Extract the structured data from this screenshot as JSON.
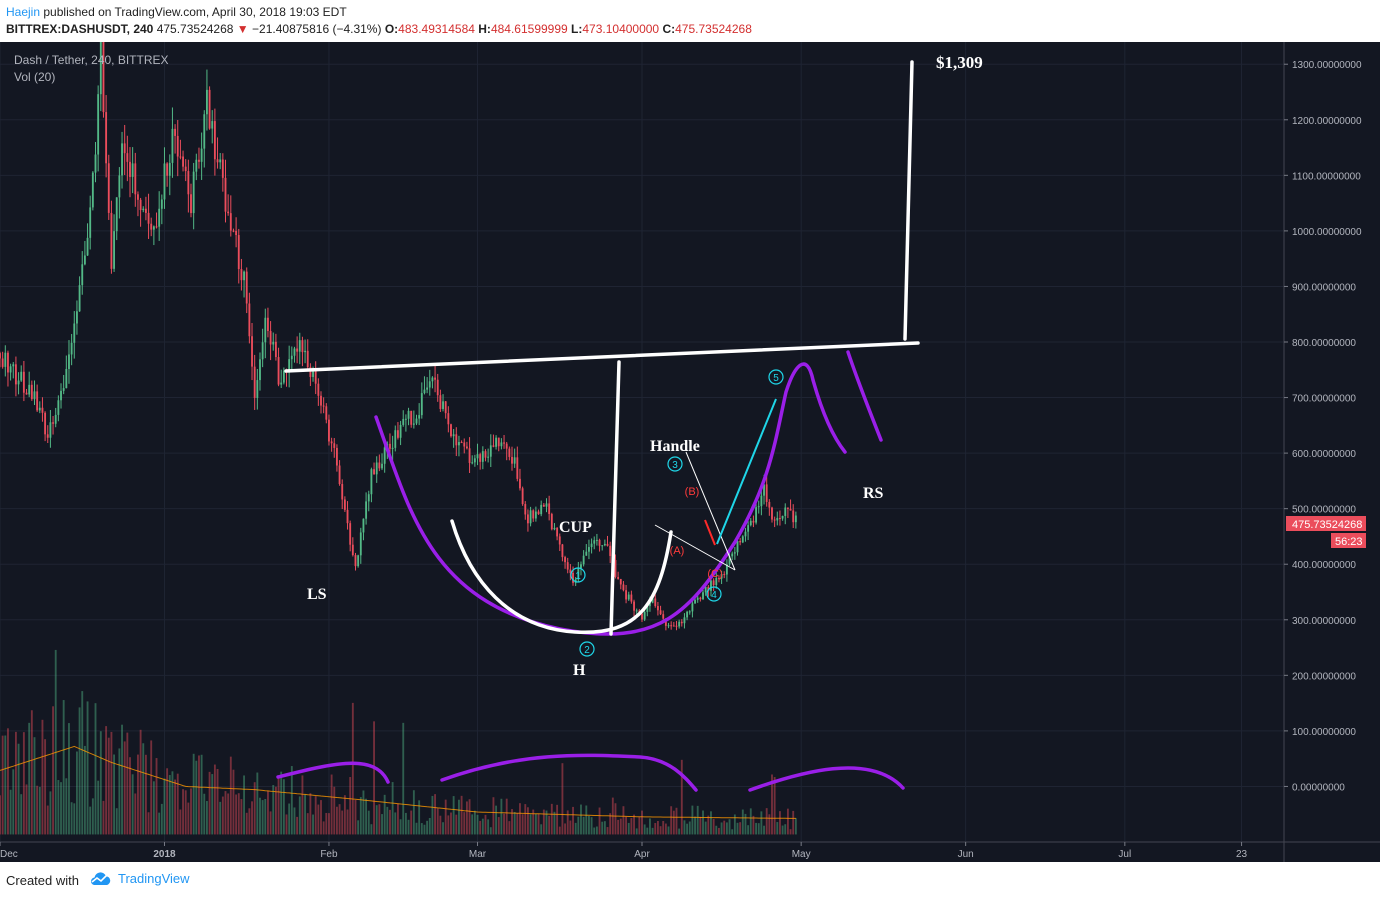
{
  "header": {
    "author": "Haejin",
    "published": "published on TradingView.com, April 30, 2018 19:03 EDT",
    "symbol": "BITTREX:DASHUSDT, 240",
    "last": "475.73524268",
    "change_arrow": "▼",
    "change": "−21.40875816 (−4.31%)",
    "o_label": "O:",
    "o_value": "483.49314584",
    "h_label": "H:",
    "h_value": "484.61599999",
    "l_label": "L:",
    "l_value": "473.10400000",
    "c_label": "C:",
    "c_value": "475.73524268"
  },
  "chart": {
    "pane_title": "Dash / Tether, 240, BITTREX",
    "vol_label": "Vol (20)",
    "last_price_tag": "475.73524268",
    "countdown_tag": "56:23",
    "colors": {
      "background": "#131722",
      "up": "#53b987",
      "down": "#eb4d5c",
      "pattern": "#ffffff",
      "curve": "#9a1fe8",
      "wave": "#1fd6e8",
      "price_tag": "#eb4d5c"
    }
  },
  "annotations": {
    "target": "$1,309",
    "ls": "LS",
    "h": "H",
    "rs": "RS",
    "cup": "CUP",
    "handle": "Handle",
    "wave1": "1",
    "wave2": "2",
    "wave3": "3",
    "wave4": "4",
    "wave5": "5",
    "wave_a": "(A)",
    "wave_b": "(B)",
    "wave_c": "(C)"
  },
  "chart_data": {
    "type": "candlestick",
    "title": "Dash / Tether, 240, BITTREX",
    "y_axis_labels": [
      "1300.00000000",
      "1200.00000000",
      "1100.00000000",
      "1000.00000000",
      "900.00000000",
      "800.00000000",
      "700.00000000",
      "600.00000000",
      "500.00000000",
      "400.00000000",
      "300.00000000",
      "200.00000000",
      "100.00000000",
      "0.00000000"
    ],
    "y_ticks": [
      1300,
      1200,
      1100,
      1000,
      900,
      800,
      700,
      600,
      500,
      400,
      300,
      200,
      100,
      0
    ],
    "ylim": [
      -100,
      1340
    ],
    "x_axis_labels": [
      "Dec",
      "2018",
      "Feb",
      "Mar",
      "Apr",
      "May",
      "Jun",
      "Jul",
      "23"
    ],
    "x_ticks": [
      "2017-12-01",
      "2018-01-01",
      "2018-02-01",
      "2018-03-01",
      "2018-04-01",
      "2018-05-01",
      "2018-06-01",
      "2018-07-01",
      "2018-07-23"
    ],
    "xlim": [
      "2017-12-01",
      "2018-07-31"
    ],
    "last_price": 475.73524268,
    "target_price": 1309,
    "neckline": [
      {
        "x": "2018-01-29",
        "y": 750
      },
      {
        "x": "2018-06-16",
        "y": 800
      }
    ],
    "target_leg": [
      {
        "x": "2018-06-15",
        "y": 800
      },
      {
        "x": "2018-06-16",
        "y": 1310
      }
    ],
    "measured_move": [
      {
        "x": "2018-04-11",
        "y": 275
      },
      {
        "x": "2018-04-12",
        "y": 775
      }
    ],
    "price_path": [
      {
        "x": "2017-12-01",
        "y": 780
      },
      {
        "x": "2017-12-08",
        "y": 690
      },
      {
        "x": "2017-12-10",
        "y": 630
      },
      {
        "x": "2017-12-13",
        "y": 720
      },
      {
        "x": "2017-12-17",
        "y": 950
      },
      {
        "x": "2017-12-19",
        "y": 1150
      },
      {
        "x": "2017-12-20",
        "y": 1330
      },
      {
        "x": "2017-12-22",
        "y": 920
      },
      {
        "x": "2017-12-24",
        "y": 1180
      },
      {
        "x": "2017-12-27",
        "y": 1060
      },
      {
        "x": "2017-12-30",
        "y": 1010
      },
      {
        "x": "2018-01-03",
        "y": 1180
      },
      {
        "x": "2018-01-06",
        "y": 1050
      },
      {
        "x": "2018-01-09",
        "y": 1230
      },
      {
        "x": "2018-01-12",
        "y": 1080
      },
      {
        "x": "2018-01-16",
        "y": 910
      },
      {
        "x": "2018-01-18",
        "y": 700
      },
      {
        "x": "2018-01-20",
        "y": 850
      },
      {
        "x": "2018-01-23",
        "y": 720
      },
      {
        "x": "2018-01-26",
        "y": 800
      },
      {
        "x": "2018-01-29",
        "y": 740
      },
      {
        "x": "2018-02-02",
        "y": 600
      },
      {
        "x": "2018-02-06",
        "y": 390
      },
      {
        "x": "2018-02-09",
        "y": 560
      },
      {
        "x": "2018-02-14",
        "y": 640
      },
      {
        "x": "2018-02-18",
        "y": 680
      },
      {
        "x": "2018-02-20",
        "y": 740
      },
      {
        "x": "2018-02-24",
        "y": 640
      },
      {
        "x": "2018-02-28",
        "y": 590
      },
      {
        "x": "2018-03-05",
        "y": 620
      },
      {
        "x": "2018-03-08",
        "y": 580
      },
      {
        "x": "2018-03-10",
        "y": 480
      },
      {
        "x": "2018-03-14",
        "y": 500
      },
      {
        "x": "2018-03-17",
        "y": 410
      },
      {
        "x": "2018-03-19",
        "y": 370
      },
      {
        "x": "2018-03-22",
        "y": 430
      },
      {
        "x": "2018-03-25",
        "y": 440
      },
      {
        "x": "2018-03-28",
        "y": 360
      },
      {
        "x": "2018-04-01",
        "y": 300
      },
      {
        "x": "2018-04-03",
        "y": 340
      },
      {
        "x": "2018-04-06",
        "y": 285
      },
      {
        "x": "2018-04-09",
        "y": 300
      },
      {
        "x": "2018-04-12",
        "y": 345
      },
      {
        "x": "2018-04-16",
        "y": 380
      },
      {
        "x": "2018-04-19",
        "y": 440
      },
      {
        "x": "2018-04-22",
        "y": 480
      },
      {
        "x": "2018-04-24",
        "y": 540
      },
      {
        "x": "2018-04-26",
        "y": 470
      },
      {
        "x": "2018-04-28",
        "y": 500
      },
      {
        "x": "2018-04-30",
        "y": 476
      }
    ],
    "volume_path": [
      {
        "x": "2017-12-01",
        "y": 40
      },
      {
        "x": "2017-12-15",
        "y": 55
      },
      {
        "x": "2017-12-22",
        "y": 45
      },
      {
        "x": "2018-01-05",
        "y": 30
      },
      {
        "x": "2018-01-18",
        "y": 28
      },
      {
        "x": "2018-02-06",
        "y": 22
      },
      {
        "x": "2018-03-01",
        "y": 14
      },
      {
        "x": "2018-04-01",
        "y": 11
      },
      {
        "x": "2018-04-30",
        "y": 10
      }
    ],
    "elliott_labels": [
      {
        "label": "1",
        "x": "2018-04-02",
        "y": 385
      },
      {
        "label": "2",
        "x": "2018-04-06",
        "y": 250
      },
      {
        "label": "3",
        "x": "2018-04-24",
        "y": 580
      },
      {
        "label": "4",
        "x": "2018-05-05",
        "y": 345
      },
      {
        "label": "5",
        "x": "2018-05-23",
        "y": 725
      },
      {
        "label": "(A)",
        "x": "2018-04-25",
        "y": 430
      },
      {
        "label": "(B)",
        "x": "2018-04-29",
        "y": 525
      },
      {
        "label": "(C)",
        "x": "2018-05-05",
        "y": 390
      }
    ]
  }
}
